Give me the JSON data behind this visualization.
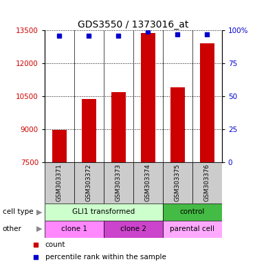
{
  "title": "GDS3550 / 1373016_at",
  "samples": [
    "GSM303371",
    "GSM303372",
    "GSM303373",
    "GSM303374",
    "GSM303375",
    "GSM303376"
  ],
  "counts": [
    8970,
    10380,
    10680,
    13380,
    10900,
    12900
  ],
  "percentile_ranks": [
    96,
    96,
    96,
    99,
    97,
    97
  ],
  "ymin": 7500,
  "ymax": 13500,
  "yticks": [
    7500,
    9000,
    10500,
    12000,
    13500
  ],
  "right_yticks": [
    0,
    25,
    50,
    75,
    100
  ],
  "right_ytick_labels": [
    "0",
    "25",
    "50",
    "75",
    "100%"
  ],
  "bar_color": "#cc0000",
  "dot_color": "#0000cc",
  "cell_type_groups": [
    {
      "label": "GLI1 transformed",
      "color": "#ccffcc",
      "span": [
        0,
        4
      ]
    },
    {
      "label": "control",
      "color": "#44bb44",
      "span": [
        4,
        6
      ]
    }
  ],
  "other_groups": [
    {
      "label": "clone 1",
      "color": "#ff88ff",
      "span": [
        0,
        2
      ]
    },
    {
      "label": "clone 2",
      "color": "#cc44cc",
      "span": [
        2,
        4
      ]
    },
    {
      "label": "parental cell",
      "color": "#ffaaff",
      "span": [
        4,
        6
      ]
    }
  ],
  "left_label": "cell type",
  "other_label": "other",
  "legend_count_label": "count",
  "legend_pct_label": "percentile rank within the sample",
  "axis_label_color_left": "#cc0000",
  "axis_label_color_right": "#0000cc",
  "bg_color": "#ffffff",
  "tick_label_bg": "#cccccc"
}
